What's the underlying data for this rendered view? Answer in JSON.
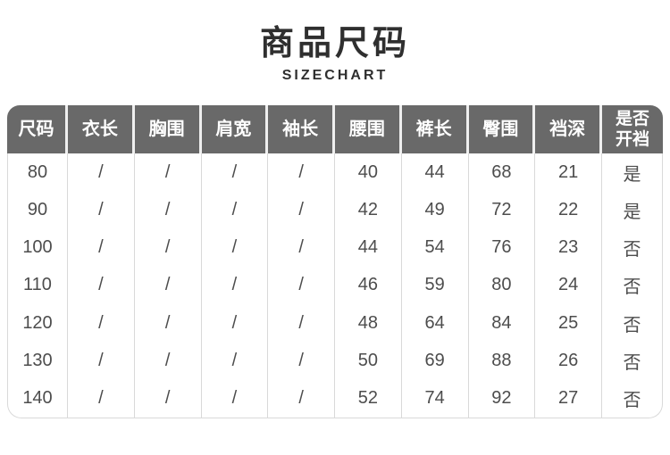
{
  "header": {
    "title": "商品尺码",
    "subtitle": "SIZECHART"
  },
  "chart_data": {
    "type": "table",
    "title": "商品尺码",
    "subtitle": "SIZECHART",
    "columns": [
      "尺码",
      "衣长",
      "胸围",
      "肩宽",
      "袖长",
      "腰围",
      "裤长",
      "臀围",
      "裆深",
      "是否\n开裆"
    ],
    "rows": [
      [
        "80",
        "/",
        "/",
        "/",
        "/",
        "40",
        "44",
        "68",
        "21",
        "是"
      ],
      [
        "90",
        "/",
        "/",
        "/",
        "/",
        "42",
        "49",
        "72",
        "22",
        "是"
      ],
      [
        "100",
        "/",
        "/",
        "/",
        "/",
        "44",
        "54",
        "76",
        "23",
        "否"
      ],
      [
        "110",
        "/",
        "/",
        "/",
        "/",
        "46",
        "59",
        "80",
        "24",
        "否"
      ],
      [
        "120",
        "/",
        "/",
        "/",
        "/",
        "48",
        "64",
        "84",
        "25",
        "否"
      ],
      [
        "130",
        "/",
        "/",
        "/",
        "/",
        "50",
        "69",
        "88",
        "26",
        "否"
      ],
      [
        "140",
        "/",
        "/",
        "/",
        "/",
        "52",
        "74",
        "92",
        "27",
        "否"
      ]
    ]
  },
  "colors": {
    "page_bg": "#ffffff",
    "title_text": "#2f2f2f",
    "header_bg": "#696969",
    "header_text": "#ffffff",
    "body_text": "#4d4d4d",
    "divider": "#d9d9d9"
  }
}
